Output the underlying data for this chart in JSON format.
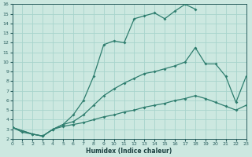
{
  "xlabel": "Humidex (Indice chaleur)",
  "background_color": "#cce8e0",
  "grid_color": "#a8d4cc",
  "line_color": "#2e7d6e",
  "xlim": [
    0,
    23
  ],
  "ylim": [
    2,
    16
  ],
  "xticks": [
    0,
    1,
    2,
    3,
    4,
    5,
    6,
    7,
    8,
    9,
    10,
    11,
    12,
    13,
    14,
    15,
    16,
    17,
    18,
    19,
    20,
    21,
    22,
    23
  ],
  "yticks": [
    2,
    3,
    4,
    5,
    6,
    7,
    8,
    9,
    10,
    11,
    12,
    13,
    14,
    15,
    16
  ],
  "line1_x": [
    0,
    1,
    2,
    3,
    4,
    5,
    6,
    7,
    8,
    9,
    10,
    11,
    12,
    13,
    14,
    15,
    16,
    17,
    18
  ],
  "line1_y": [
    3.2,
    2.7,
    2.5,
    2.3,
    3.0,
    3.5,
    4.5,
    6.0,
    8.5,
    11.8,
    12.2,
    12.0,
    14.5,
    14.8,
    15.1,
    14.5,
    15.3,
    16.0,
    15.5
  ],
  "line2_x": [
    0,
    2,
    3,
    4,
    5,
    6,
    7,
    8,
    9,
    10,
    11,
    12,
    13,
    14,
    15,
    16,
    17,
    18,
    19,
    20,
    21,
    22,
    23
  ],
  "line2_y": [
    3.2,
    2.5,
    2.3,
    3.0,
    3.5,
    3.8,
    4.5,
    5.5,
    6.5,
    7.2,
    7.8,
    8.3,
    8.8,
    9.0,
    9.3,
    9.6,
    10.0,
    11.5,
    9.8,
    9.8,
    8.5,
    5.8,
    8.5
  ],
  "line3_x": [
    0,
    2,
    3,
    4,
    5,
    6,
    7,
    8,
    9,
    10,
    11,
    12,
    13,
    14,
    15,
    16,
    17,
    18,
    19,
    20,
    21,
    22,
    23
  ],
  "line3_y": [
    3.2,
    2.5,
    2.3,
    3.0,
    3.3,
    3.5,
    3.7,
    4.0,
    4.3,
    4.5,
    4.8,
    5.0,
    5.3,
    5.5,
    5.7,
    6.0,
    6.2,
    6.5,
    6.2,
    5.8,
    5.4,
    5.0,
    5.5
  ]
}
